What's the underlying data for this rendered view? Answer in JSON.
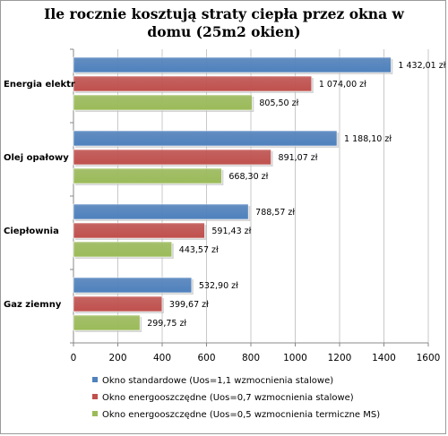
{
  "chart_data": {
    "type": "bar",
    "orientation": "horizontal",
    "title_lines": [
      "Ile rocznie kosztują straty ciepła przez okna w",
      "domu (25m2 okien)"
    ],
    "categories": [
      "Energia elektr",
      "Olej opałowy",
      "Ciepłownia",
      "Gaz ziemny"
    ],
    "series": [
      {
        "name": "Okno standardowe (Uos=1,1 wzmocnienia stalowe)",
        "color": "#4f81bd",
        "values": [
          1432.01,
          1188.1,
          788.57,
          532.9
        ],
        "labels": [
          "1 432,01 zł",
          "1 188,10 zł",
          "788,57 zł",
          "532,90 zł"
        ]
      },
      {
        "name": "Okno energooszczędne (Uos=0,7 wzmocnienia stalowe)",
        "color": "#c0504d",
        "values": [
          1074.0,
          891.07,
          591.43,
          399.67
        ],
        "labels": [
          "1 074,00 zł",
          "891,07 zł",
          "591,43 zł",
          "399,67 zł"
        ]
      },
      {
        "name": "Okno energooszczędne (Uos=0,5 wzmocnienia termiczne MS)",
        "color": "#9bbb59",
        "values": [
          805.5,
          668.3,
          443.57,
          299.75
        ],
        "labels": [
          "805,50 zł",
          "668,30 zł",
          "443,57 zł",
          "299,75 zł"
        ]
      }
    ],
    "xlim": [
      0,
      1600
    ],
    "xticks": [
      0,
      200,
      400,
      600,
      800,
      1000,
      1200,
      1400,
      1600
    ],
    "xgrid": true,
    "legend_position": "bottom"
  }
}
